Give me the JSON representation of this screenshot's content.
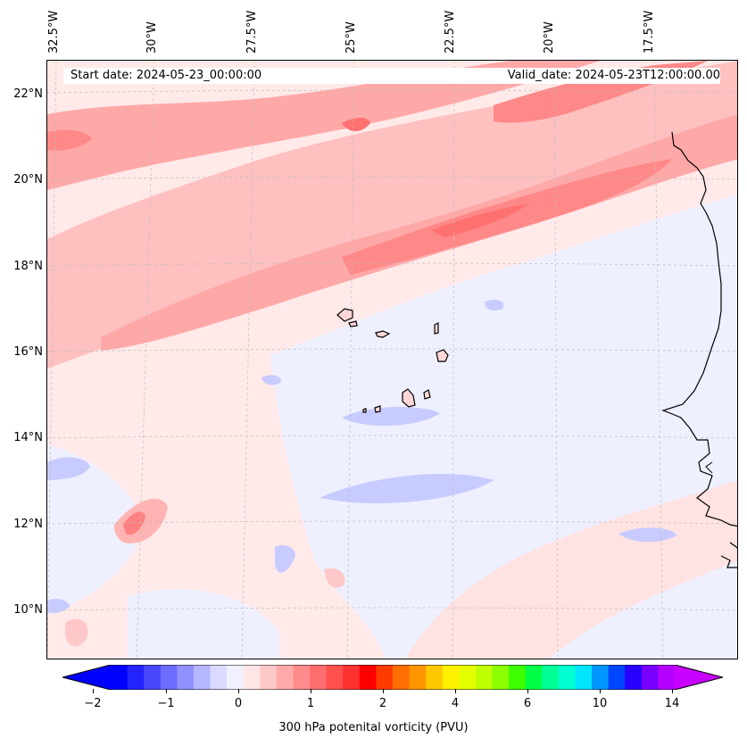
{
  "header": {
    "start_date": "Start date: 2024-05-23_00:00:00",
    "valid_date": "Valid_date: 2024-05-23T12:00:00.00"
  },
  "longitude_labels": [
    "32.5°W",
    "30°W",
    "27.5°W",
    "25°W",
    "22.5°W",
    "20°W",
    "17.5°W"
  ],
  "latitude_labels": [
    "22°N",
    "20°N",
    "18°N",
    "16°N",
    "14°N",
    "12°N",
    "10°N"
  ],
  "colorbar": {
    "label": "300 hPa potenital vorticity (PVU)",
    "tick_labels": [
      "−2",
      "−1",
      "0",
      "1",
      "2",
      "4",
      "6",
      "10",
      "14"
    ],
    "colors": [
      "#0000ff",
      "#2424ff",
      "#4848ff",
      "#6d6dff",
      "#9191ff",
      "#b6b6ff",
      "#dadaff",
      "#f0f0ff",
      "#ffe6e6",
      "#ffc8c8",
      "#ffaaaa",
      "#ff8c8c",
      "#ff6e6e",
      "#ff5050",
      "#ff3232",
      "#ff0000",
      "#ff3c00",
      "#ff6e00",
      "#ff9600",
      "#ffc800",
      "#fff000",
      "#e6ff00",
      "#bfff00",
      "#8cff00",
      "#3cff00",
      "#00ff46",
      "#00ff96",
      "#00ffd2",
      "#00e6ff",
      "#0096ff",
      "#0046ff",
      "#2800ff",
      "#7800ff",
      "#b400ff"
    ],
    "extend_min_color": "#0000ff",
    "extend_max_color": "#c800ff"
  },
  "map": {
    "background_color": "#ffe9e9",
    "light_blue": "#eef0ff",
    "blue": "#c8cbff",
    "pink_light": "#ffdada",
    "pink_mid": "#ffb4b4",
    "pink_strong": "#ff8c8c",
    "red": "#ff6a6a",
    "coastline_color": "#000000",
    "gridline_color": "#bdbdbd"
  }
}
